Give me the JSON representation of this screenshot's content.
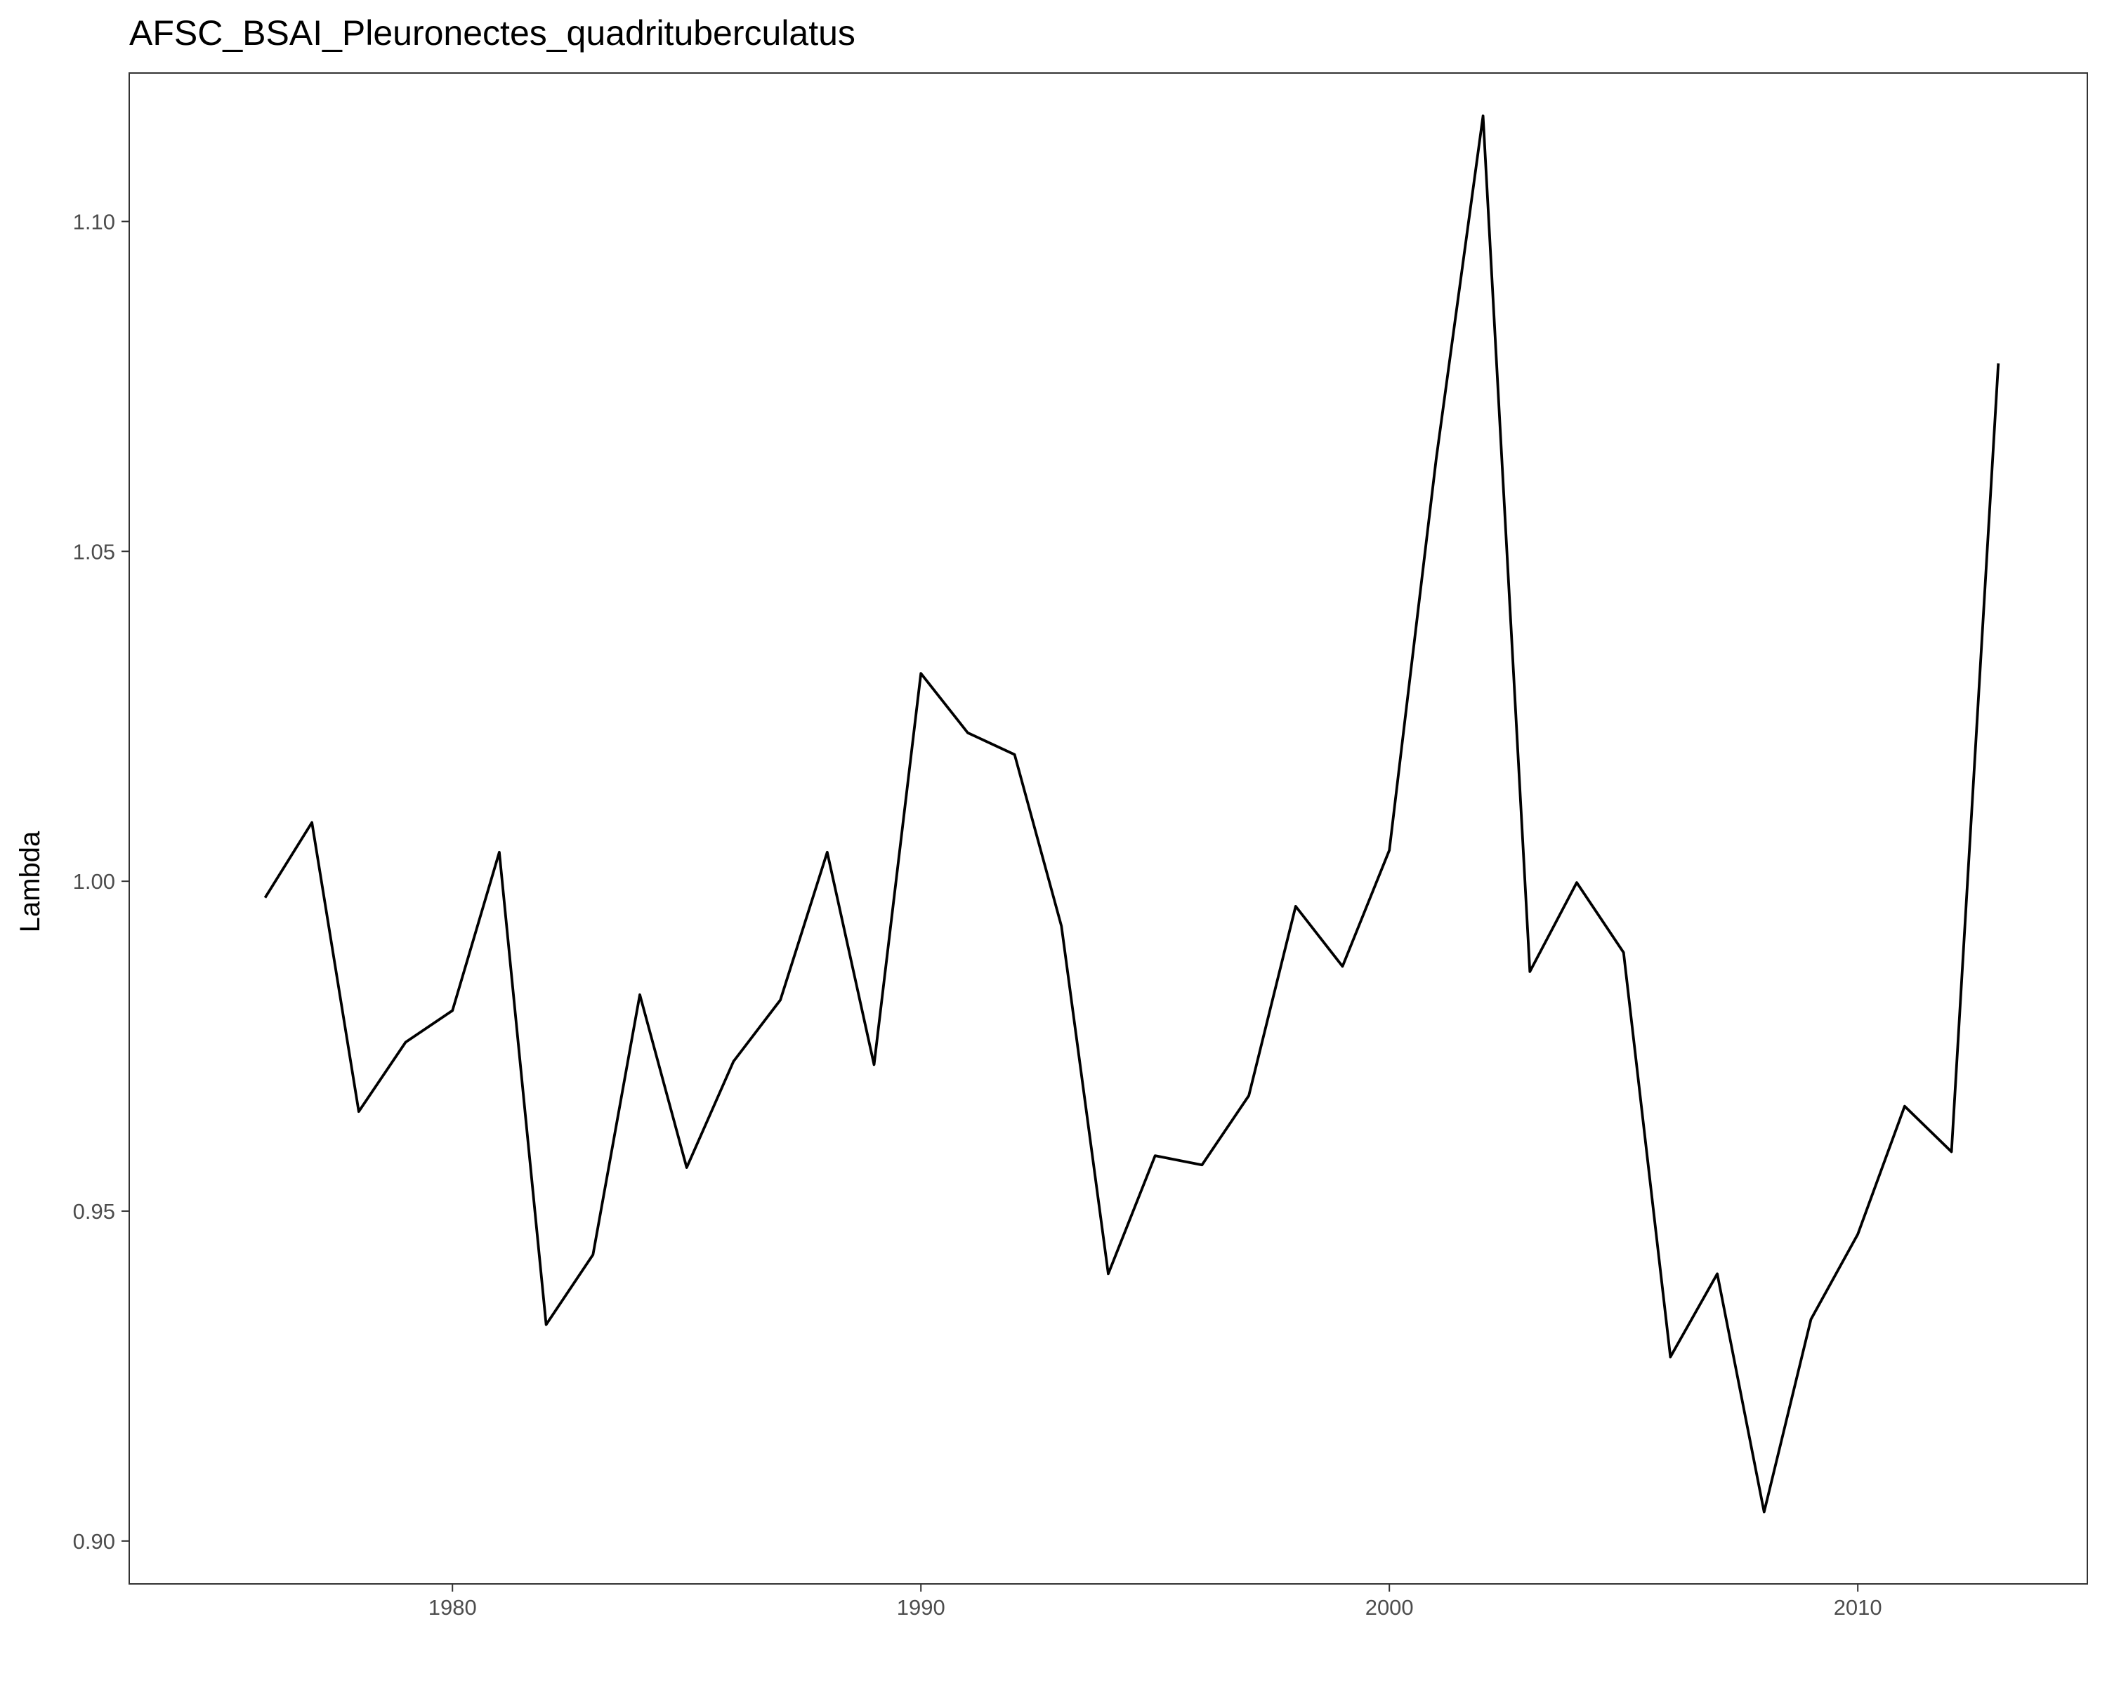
{
  "chart_data": {
    "type": "line",
    "title": "AFSC_BSAI_Pleuronectes_quadrituberculatus",
    "xlabel": "",
    "ylabel": "Lambda",
    "xlim": [
      1973.1,
      2014.9
    ],
    "ylim": [
      0.8935,
      1.1225
    ],
    "x_ticks": [
      1980,
      1990,
      2000,
      2010
    ],
    "y_ticks": [
      0.9,
      0.95,
      1.0,
      1.05,
      1.1
    ],
    "x_tick_labels": [
      "1980",
      "1990",
      "2000",
      "2010"
    ],
    "y_tick_labels": [
      "0.90",
      "0.95",
      "1.00",
      "1.05",
      "1.10"
    ],
    "grid": false,
    "line_color": "#000000",
    "series": [
      {
        "x": [
          1976,
          1977,
          1978,
          1979,
          1980,
          1981,
          1982,
          1983,
          1984,
          1985,
          1986,
          1987,
          1988,
          1989,
          1990,
          1991,
          1992,
          1993,
          1994,
          1995,
          1996,
          1997,
          1998,
          1999,
          2000,
          2001,
          2002,
          2003,
          2004,
          2005,
          2006,
          2007,
          2008,
          2009,
          2010,
          2011,
          2012,
          2013
        ],
        "values": [
          0.9975,
          1.0089,
          0.9651,
          0.9756,
          0.9804,
          1.0044,
          0.9328,
          0.9434,
          0.9828,
          0.9566,
          0.9727,
          0.982,
          1.0044,
          0.9722,
          1.0315,
          1.0225,
          1.0192,
          0.9932,
          0.9405,
          0.9584,
          0.957,
          0.9675,
          0.9962,
          0.9871,
          1.0047,
          1.064,
          1.116,
          0.9863,
          0.9998,
          0.9892,
          0.9279,
          0.9405,
          0.9044,
          0.9336,
          0.9465,
          0.9659,
          0.959,
          1.0785
        ]
      }
    ]
  }
}
